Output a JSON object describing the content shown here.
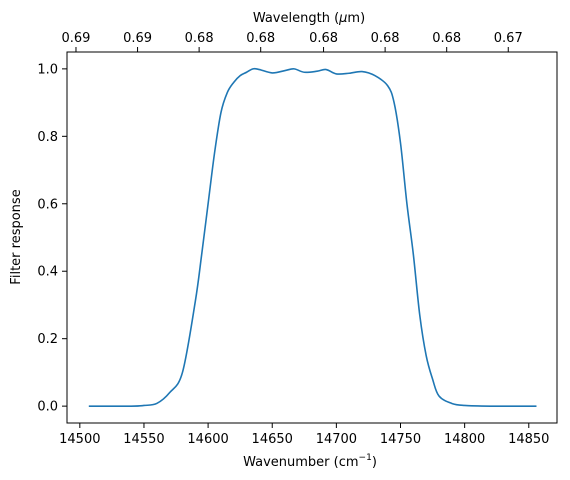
{
  "chart_data": {
    "type": "line",
    "title": "",
    "xlabel": "Wavenumber (cm",
    "xlabel_superscript": "−1",
    "xlabel_suffix": ")",
    "ylabel": "Filter response",
    "top_axis_label_prefix": "Wavelength (",
    "top_axis_label_mu": "μ",
    "top_axis_label_suffix": "m)",
    "xlim": [
      14490,
      14872
    ],
    "ylim": [
      -0.05,
      1.05
    ],
    "grid": false,
    "line_color": "#1f77b4",
    "x_ticks": [
      14500,
      14550,
      14600,
      14650,
      14700,
      14750,
      14800,
      14850
    ],
    "x_tick_labels": [
      "14500",
      "14550",
      "14600",
      "14650",
      "14700",
      "14750",
      "14800",
      "14850"
    ],
    "y_ticks": [
      0.0,
      0.2,
      0.4,
      0.6,
      0.8,
      1.0
    ],
    "y_tick_labels": [
      "0.0",
      "0.2",
      "0.4",
      "0.6",
      "0.8",
      "1.0"
    ],
    "top_ticks_wavenumber": [
      14497,
      14545,
      14593,
      14641,
      14690,
      14738,
      14786,
      14834
    ],
    "top_tick_labels": [
      "0.69",
      "0.69",
      "0.68",
      "0.68",
      "0.68",
      "0.68",
      "0.68",
      "0.67"
    ],
    "series": [
      {
        "x": [
          14507,
          14540,
          14550,
          14560,
          14570,
          14580,
          14590,
          14595,
          14600,
          14605,
          14610,
          14615,
          14620,
          14625,
          14630,
          14635,
          14640,
          14650,
          14660,
          14667,
          14675,
          14685,
          14692,
          14700,
          14710,
          14720,
          14730,
          14740,
          14745,
          14750,
          14755,
          14760,
          14765,
          14770,
          14775,
          14780,
          14790,
          14800,
          14820,
          14856
        ],
        "y": [
          0.0,
          0.0,
          0.002,
          0.008,
          0.04,
          0.1,
          0.31,
          0.45,
          0.6,
          0.75,
          0.87,
          0.93,
          0.96,
          0.98,
          0.99,
          1.0,
          0.998,
          0.988,
          0.995,
          1.0,
          0.99,
          0.993,
          0.998,
          0.985,
          0.987,
          0.992,
          0.98,
          0.95,
          0.9,
          0.78,
          0.6,
          0.45,
          0.27,
          0.15,
          0.08,
          0.03,
          0.008,
          0.002,
          0.0,
          0.0
        ]
      }
    ]
  }
}
